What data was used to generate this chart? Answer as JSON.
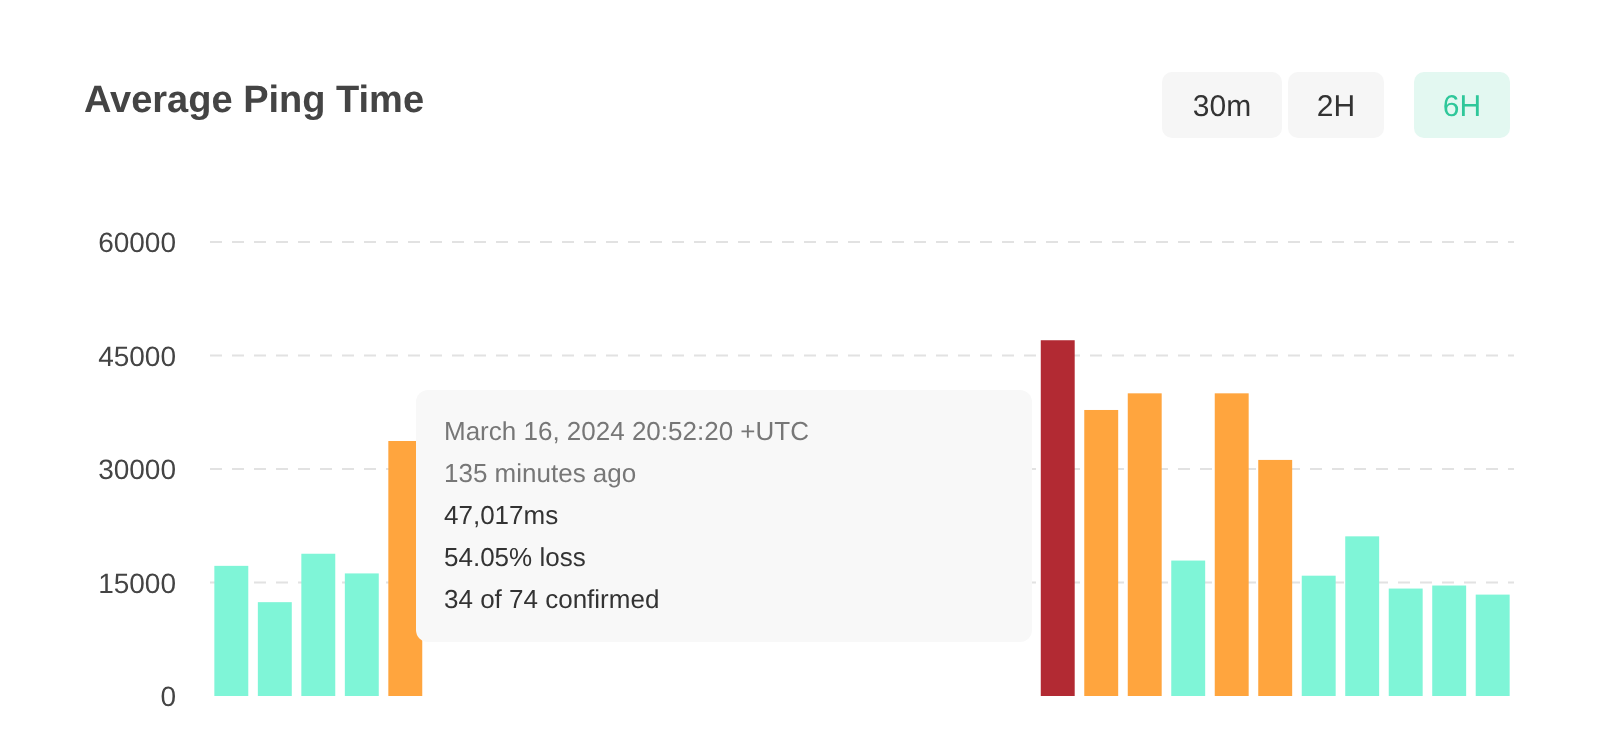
{
  "chart_data": {
    "type": "bar",
    "title": "Average Ping Time",
    "categories": [
      null,
      null,
      null,
      null,
      null,
      null,
      null,
      null,
      null,
      null,
      null,
      null,
      null,
      null,
      null,
      null,
      null,
      null,
      null,
      null,
      null,
      null,
      null,
      null,
      null,
      null,
      null,
      null,
      null,
      null
    ],
    "values": [
      17200,
      12400,
      18800,
      16200,
      33700,
      null,
      null,
      null,
      null,
      null,
      null,
      null,
      null,
      null,
      null,
      null,
      null,
      null,
      null,
      47017,
      37800,
      40000,
      17900,
      40000,
      31200,
      15900,
      21100,
      14200,
      14600,
      13400
    ],
    "colors": [
      "#7ff5d7",
      "#7ff5d7",
      "#7ff5d7",
      "#7ff5d7",
      "#ffa53e",
      null,
      null,
      null,
      null,
      null,
      null,
      null,
      null,
      null,
      null,
      null,
      null,
      null,
      null,
      "#b22a33",
      "#ffa53e",
      "#ffa53e",
      "#7ff5d7",
      "#ffa53e",
      "#ffa53e",
      "#7ff5d7",
      "#7ff5d7",
      "#7ff5d7",
      "#7ff5d7",
      "#7ff5d7"
    ],
    "ylim": [
      0,
      60000
    ],
    "yticks": [
      0,
      15000,
      30000,
      45000,
      60000
    ],
    "grid": "y",
    "annotations": [
      "March 16, 2024 20:52:20 +UTC",
      "135 minutes ago",
      "47,017ms",
      "54.05% loss",
      "34 of 74 confirmed",
      "30m",
      "2H",
      "6H"
    ]
  }
}
